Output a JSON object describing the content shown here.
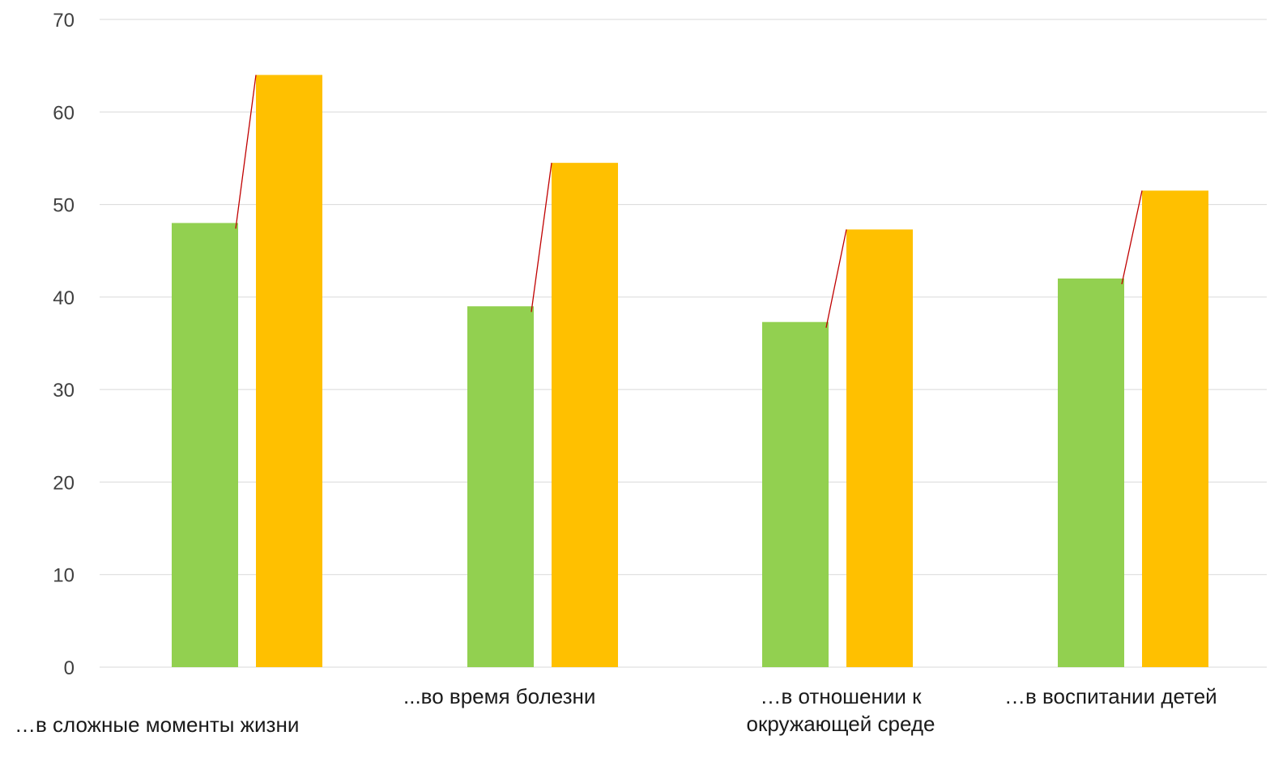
{
  "chart_data": {
    "type": "bar",
    "categories": [
      "…в сложные моменты жизни",
      "...во время болезни",
      "…в отношении к окружающей среде",
      "…в воспитании детей"
    ],
    "category_label_lines": [
      [
        "…в сложные моменты жизни"
      ],
      [
        "...во время болезни"
      ],
      [
        "…в отношении к",
        "окружающей среде"
      ],
      [
        "…в воспитании детей"
      ]
    ],
    "series": [
      {
        "values": [
          48,
          39,
          37.3,
          42
        ],
        "color": "#92d050"
      },
      {
        "values": [
          64,
          54.5,
          47.3,
          51.5
        ],
        "color": "#ffc000"
      }
    ],
    "connector_color": "#c00000",
    "ylim": [
      0,
      70
    ],
    "yticks": [
      0,
      10,
      20,
      30,
      40,
      50,
      60,
      70
    ],
    "grid": true,
    "legend": "none",
    "title": "",
    "xlabel": "",
    "ylabel": ""
  }
}
